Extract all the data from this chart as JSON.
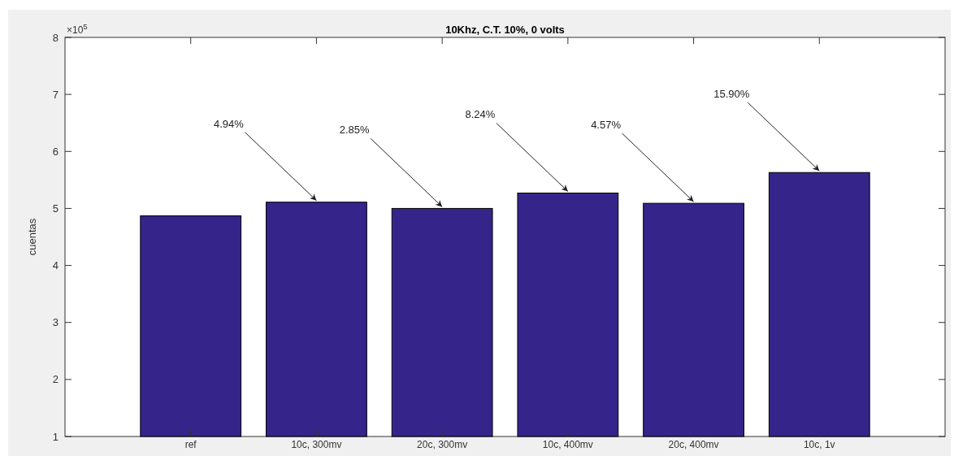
{
  "chart_data": {
    "type": "bar",
    "title": "10Khz, C.T. 10%, 0 volts",
    "ylabel": "cuentas",
    "categories": [
      "ref",
      "10c, 300mv",
      "20c, 300mv",
      "10c, 400mv",
      "20c, 400mv",
      "10c, 1v"
    ],
    "values": [
      4.87,
      5.11,
      5.0,
      5.27,
      5.09,
      5.63
    ],
    "color": "#35248a",
    "ylim": [
      1,
      8
    ],
    "yticks": [
      1,
      2,
      3,
      4,
      5,
      6,
      7,
      8
    ],
    "grid": false,
    "annotations": [
      "×10$^{5}$",
      {
        "text": "4.94%",
        "x": "10c, 300mv",
        "y": 5.11
      },
      {
        "text": "2.85%",
        "x": "20c, 300mv",
        "y": 5.0
      },
      {
        "text": "8.24%",
        "x": "10c, 400mv",
        "y": 5.27
      },
      {
        "text": "4.57%",
        "x": "20c, 400mv",
        "y": 5.09
      },
      {
        "text": "15.90%",
        "x": "10c, 1v",
        "y": 5.63
      }
    ]
  }
}
